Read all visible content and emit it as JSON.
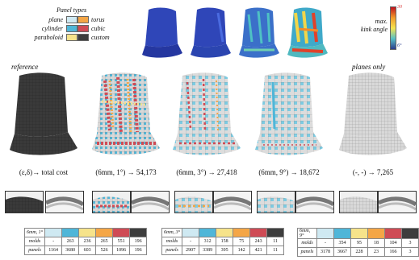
{
  "legend": {
    "title": "Panel types",
    "items": [
      {
        "label": "plane",
        "color": "#cfe9f2"
      },
      {
        "label": "torus",
        "color": "#f4a646"
      },
      {
        "label": "cylinder",
        "color": "#4fb6d8"
      },
      {
        "label": "cubic",
        "color": "#cf4b55"
      },
      {
        "label": "paraboloid",
        "color": "#f6e38a"
      },
      {
        "label": "custom",
        "color": "#3d3d3d"
      }
    ]
  },
  "colorbar": {
    "title_line1": "max.",
    "title_line2": "kink angle",
    "max": "30",
    "min": "6°"
  },
  "labels": {
    "reference": "reference",
    "planes_only": "planes only"
  },
  "captions": [
    "(ε,δ)→ total cost",
    "(6mm, 1°) → 54,173",
    "(6mm, 3°) → 27,418",
    "(6mm, 9°) → 18,672",
    "(-, -) → 7,265"
  ],
  "tables": [
    {
      "title": "6mm, 1°",
      "header_colors": [
        "#cfe9f2",
        "#4fb6d8",
        "#f6e38a",
        "#f4a646",
        "#cf4b55",
        "#3d3d3d"
      ],
      "rows": [
        {
          "label": "molds",
          "values": [
            "-",
            "263",
            "236",
            "265",
            "551",
            "196"
          ]
        },
        {
          "label": "panels",
          "values": [
            "1164",
            "3680",
            "603",
            "526",
            "1096",
            "196"
          ]
        }
      ]
    },
    {
      "title": "6mm, 3°",
      "header_colors": [
        "#cfe9f2",
        "#4fb6d8",
        "#f6e38a",
        "#f4a646",
        "#cf4b55",
        "#3d3d3d"
      ],
      "rows": [
        {
          "label": "molds",
          "values": [
            "-",
            "312",
            "158",
            "75",
            "243",
            "11"
          ]
        },
        {
          "label": "panels",
          "values": [
            "2907",
            "3389",
            "395",
            "142",
            "421",
            "11"
          ]
        }
      ]
    },
    {
      "title": "6mm, 9°",
      "header_colors": [
        "#cfe9f2",
        "#4fb6d8",
        "#f6e38a",
        "#f4a646",
        "#cf4b55",
        "#3d3d3d"
      ],
      "rows": [
        {
          "label": "molds",
          "values": [
            "-",
            "354",
            "95",
            "18",
            "104",
            "3"
          ]
        },
        {
          "label": "panels",
          "values": [
            "3178",
            "3667",
            "228",
            "23",
            "166",
            "3"
          ]
        }
      ]
    }
  ]
}
